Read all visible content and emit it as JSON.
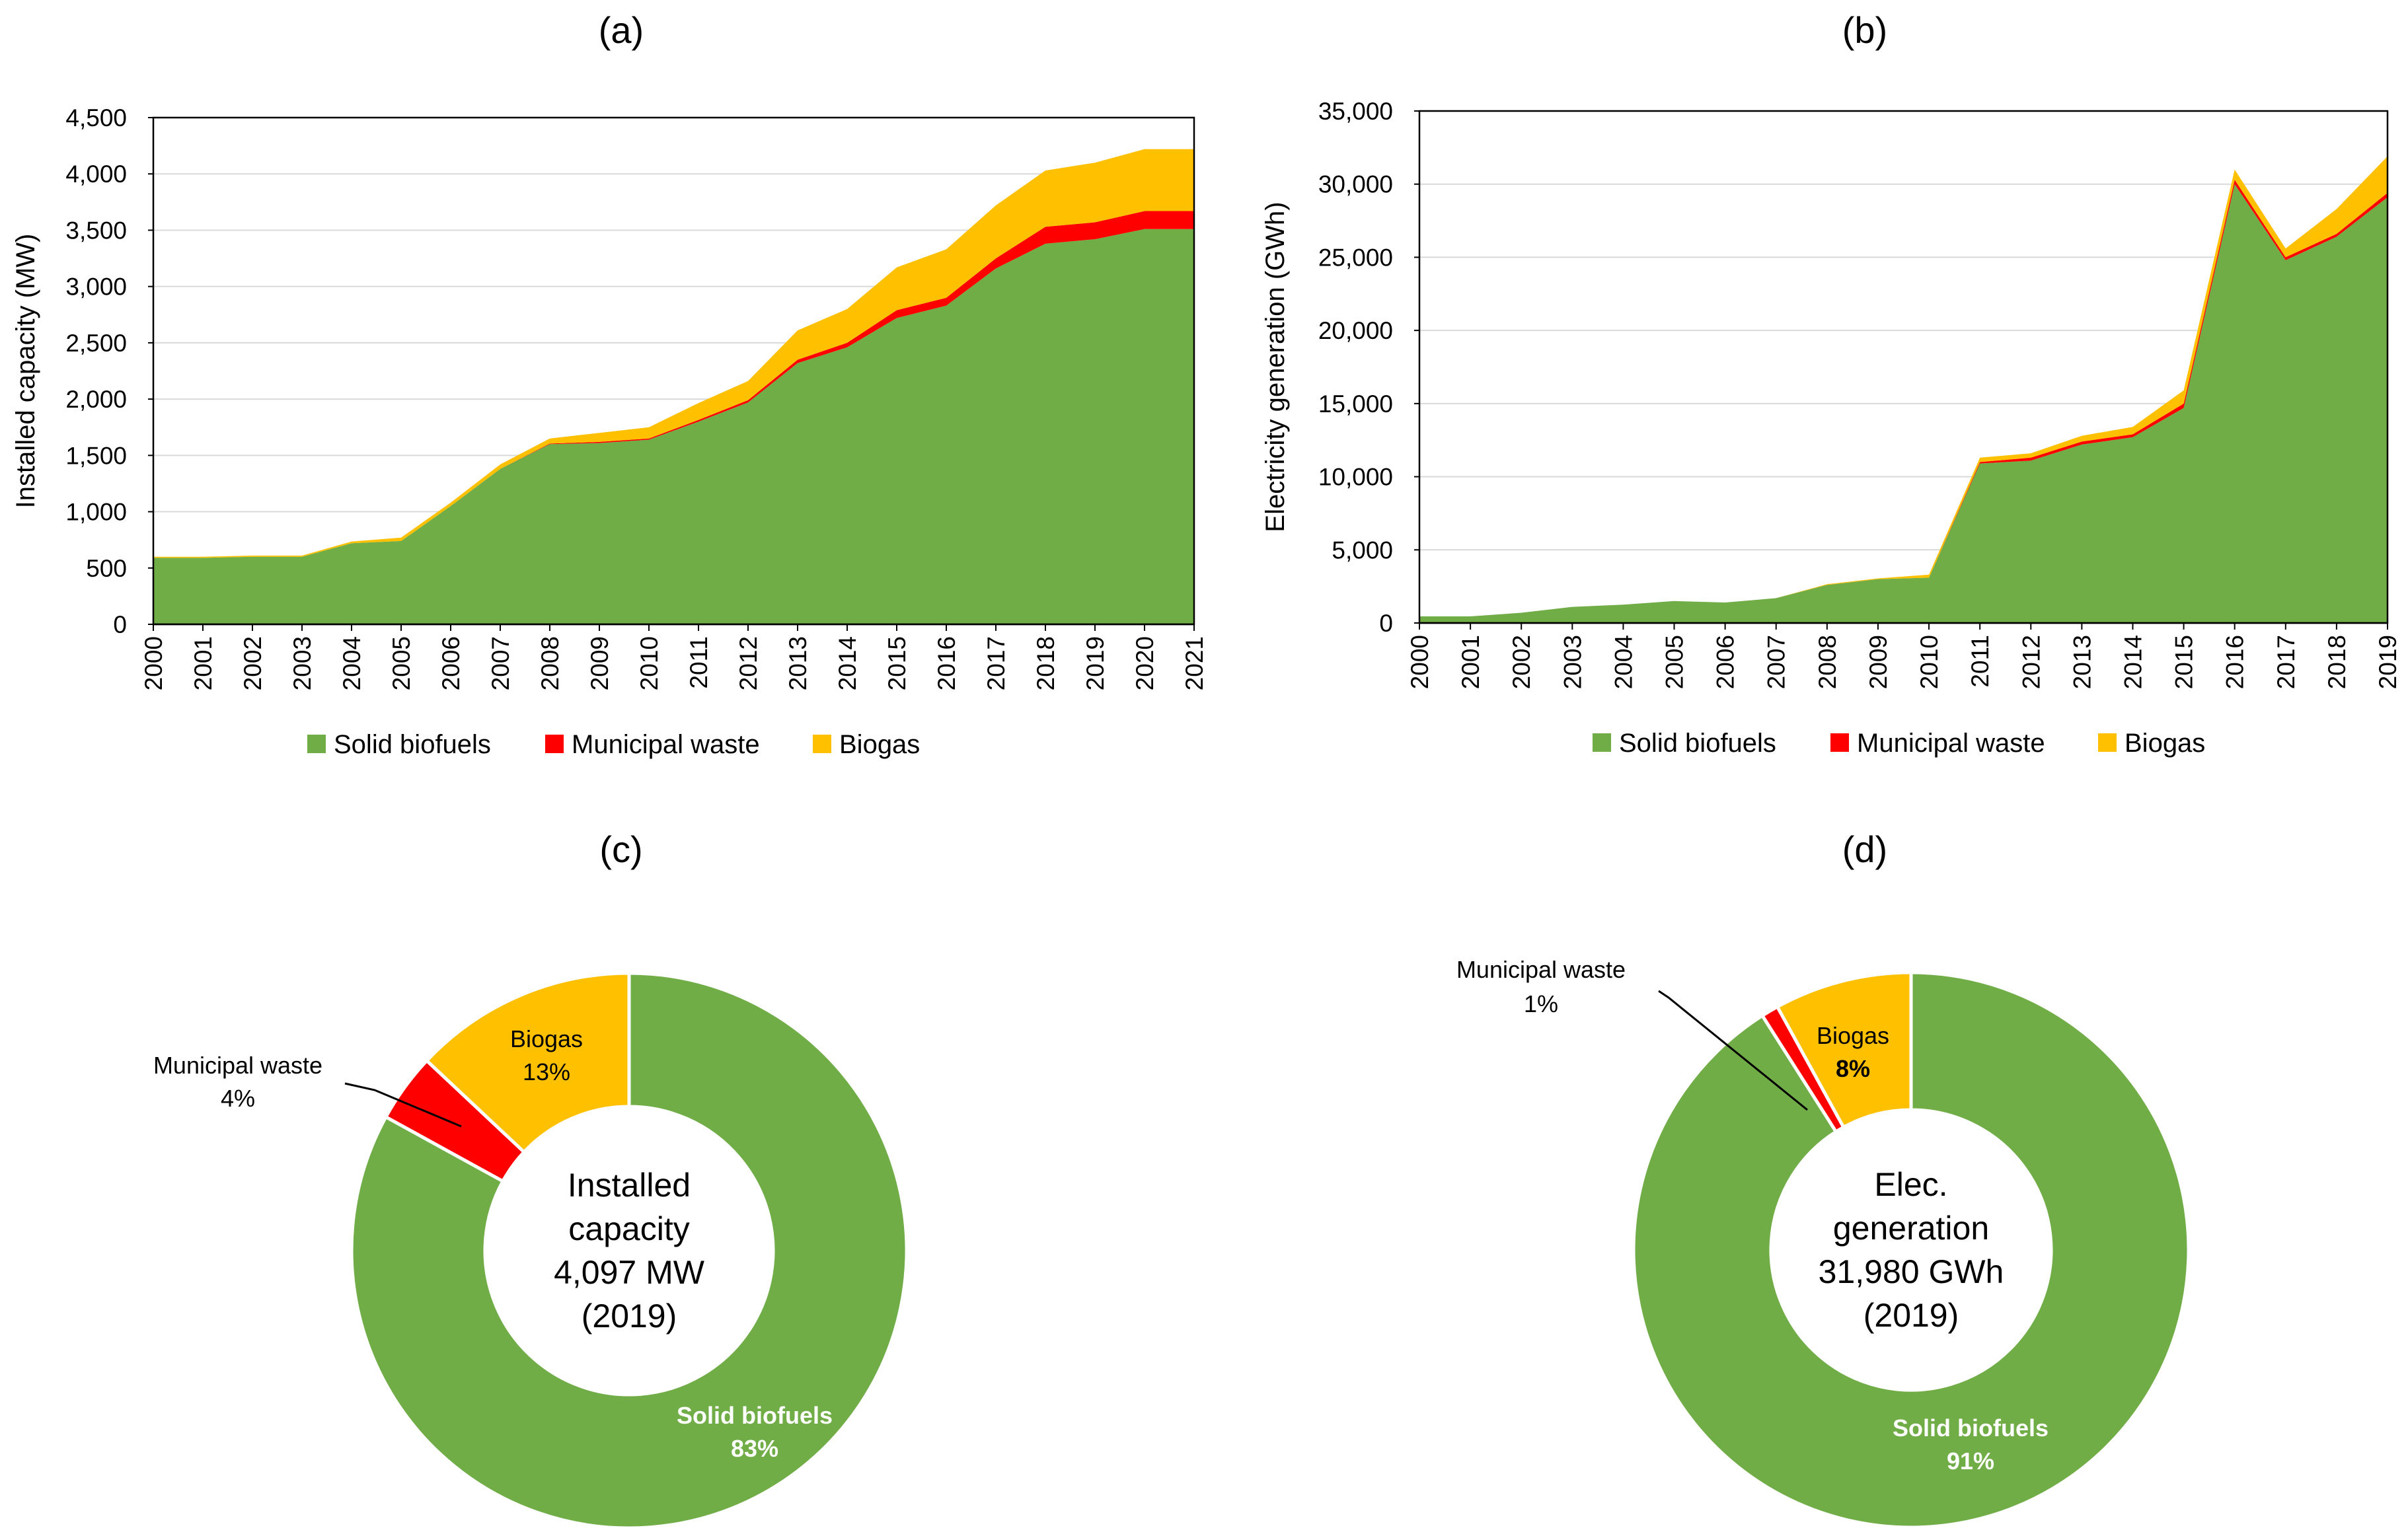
{
  "colors": {
    "solid_biofuels": "#70AD47",
    "municipal_waste": "#FF0000",
    "biogas": "#FFC000",
    "gridline": "#D9D9D9",
    "axis": "#000000"
  },
  "chart_data": [
    {
      "id": "a",
      "panel_label": "(a)",
      "type": "area",
      "stacked": true,
      "x": [
        "2000",
        "2001",
        "2002",
        "2003",
        "2004",
        "2005",
        "2006",
        "2007",
        "2008",
        "2009",
        "2010",
        "2011",
        "2012",
        "2013",
        "2014",
        "2015",
        "2016",
        "2017",
        "2018",
        "2019",
        "2020",
        "2021"
      ],
      "series": [
        {
          "name": "Solid biofuels",
          "color_key": "solid_biofuels",
          "values": [
            590,
            590,
            600,
            600,
            720,
            740,
            1050,
            1380,
            1600,
            1610,
            1640,
            1800,
            1970,
            2320,
            2460,
            2720,
            2830,
            3160,
            3380,
            3420,
            3510,
            3510
          ]
        },
        {
          "name": "Municipal waste",
          "color_key": "municipal_waste",
          "values": [
            0,
            0,
            0,
            0,
            0,
            0,
            0,
            0,
            5,
            10,
            10,
            15,
            20,
            30,
            40,
            70,
            70,
            90,
            150,
            150,
            160,
            160
          ]
        },
        {
          "name": "Biogas",
          "color_key": "biogas",
          "values": [
            10,
            10,
            10,
            10,
            15,
            30,
            30,
            40,
            45,
            80,
            100,
            150,
            170,
            260,
            300,
            380,
            430,
            470,
            500,
            530,
            550,
            550
          ]
        }
      ],
      "ylabel": "Installed capacity (MW)",
      "ylim": [
        0,
        4500
      ],
      "yticks": [
        0,
        500,
        1000,
        1500,
        2000,
        2500,
        3000,
        3500,
        4000,
        4500
      ],
      "ytick_labels": [
        "0",
        "500",
        "1,000",
        "1,500",
        "2,000",
        "2,500",
        "3,000",
        "3,500",
        "4,000",
        "4,500"
      ],
      "legend": [
        "Solid biofuels",
        "Municipal waste",
        "Biogas"
      ],
      "legend_position": "bottom",
      "grid": true
    },
    {
      "id": "b",
      "panel_label": "(b)",
      "type": "area",
      "stacked": true,
      "x": [
        "2000",
        "2001",
        "2002",
        "2003",
        "2004",
        "2005",
        "2006",
        "2007",
        "2008",
        "2009",
        "2010",
        "2011",
        "2012",
        "2013",
        "2014",
        "2015",
        "2016",
        "2017",
        "2018",
        "2019"
      ],
      "series": [
        {
          "name": "Solid biofuels",
          "color_key": "solid_biofuels",
          "values": [
            450,
            450,
            700,
            1100,
            1250,
            1500,
            1400,
            1700,
            2600,
            3000,
            3100,
            10900,
            11100,
            12200,
            12700,
            14700,
            30000,
            24800,
            26400,
            29100
          ]
        },
        {
          "name": "Municipal waste",
          "color_key": "municipal_waste",
          "values": [
            0,
            0,
            0,
            0,
            0,
            0,
            0,
            0,
            0,
            0,
            0,
            100,
            200,
            200,
            200,
            300,
            300,
            200,
            200,
            300
          ]
        },
        {
          "name": "Biogas",
          "color_key": "biogas",
          "values": [
            0,
            0,
            0,
            0,
            0,
            0,
            0,
            0,
            50,
            50,
            200,
            300,
            300,
            400,
            500,
            900,
            700,
            600,
            1700,
            2500
          ]
        }
      ],
      "ylabel": "Electricity generation (GWh)",
      "ylim": [
        0,
        35000
      ],
      "yticks": [
        0,
        5000,
        10000,
        15000,
        20000,
        25000,
        30000,
        35000
      ],
      "ytick_labels": [
        "0",
        "5,000",
        "10,000",
        "15,000",
        "20,000",
        "25,000",
        "30,000",
        "35,000"
      ],
      "legend": [
        "Solid biofuels",
        "Municipal waste",
        "Biogas"
      ],
      "legend_position": "bottom",
      "grid": true
    },
    {
      "id": "c",
      "panel_label": "(c)",
      "type": "pie",
      "donut": true,
      "slices": [
        {
          "name": "Solid biofuels",
          "value": 83,
          "color_key": "solid_biofuels",
          "name_label": "Solid biofuels",
          "pct_label": "83%"
        },
        {
          "name": "Municipal waste",
          "value": 4,
          "color_key": "municipal_waste",
          "name_label": "Municipal waste",
          "pct_label": "4%"
        },
        {
          "name": "Biogas",
          "value": 13,
          "color_key": "biogas",
          "name_label": "Biogas",
          "pct_label": "13%"
        }
      ],
      "center_lines": [
        "Installed",
        "capacity",
        "4,097 MW",
        "(2019)"
      ]
    },
    {
      "id": "d",
      "panel_label": "(d)",
      "type": "pie",
      "donut": true,
      "slices": [
        {
          "name": "Solid biofuels",
          "value": 91,
          "color_key": "solid_biofuels",
          "name_label": "Solid biofuels",
          "pct_label": "91%"
        },
        {
          "name": "Municipal waste",
          "value": 1,
          "color_key": "municipal_waste",
          "name_label": "Municipal waste",
          "pct_label": "1%"
        },
        {
          "name": "Biogas",
          "value": 8,
          "color_key": "biogas",
          "name_label": "Biogas",
          "pct_label": "8%"
        }
      ],
      "center_lines": [
        "Elec.",
        "generation",
        "31,980 GWh",
        "(2019)"
      ]
    }
  ]
}
